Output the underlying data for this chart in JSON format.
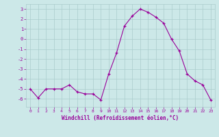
{
  "x": [
    0,
    1,
    2,
    3,
    4,
    5,
    6,
    7,
    8,
    9,
    10,
    11,
    12,
    13,
    14,
    15,
    16,
    17,
    18,
    19,
    20,
    21,
    22,
    23
  ],
  "y": [
    -5.0,
    -5.9,
    -5.0,
    -5.0,
    -5.0,
    -4.6,
    -5.3,
    -5.5,
    -5.5,
    -6.1,
    -3.5,
    -1.4,
    1.3,
    2.3,
    3.0,
    2.7,
    2.2,
    1.6,
    0.0,
    -1.2,
    -3.5,
    -4.2,
    -4.6,
    -6.1
  ],
  "line_color": "#990099",
  "marker_color": "#990099",
  "bg_color": "#cce8e8",
  "grid_color": "#aacccc",
  "xlabel": "Windchill (Refroidissement éolien,°C)",
  "xlabel_color": "#990099",
  "xtick_color": "#990099",
  "ytick_color": "#990099",
  "yticks": [
    -6,
    -5,
    -4,
    -3,
    -2,
    -1,
    0,
    1,
    2,
    3
  ],
  "xticks": [
    0,
    1,
    2,
    3,
    4,
    5,
    6,
    7,
    8,
    9,
    10,
    11,
    12,
    13,
    14,
    15,
    16,
    17,
    18,
    19,
    20,
    21,
    22,
    23
  ],
  "xlim": [
    -0.5,
    23.5
  ],
  "ylim": [
    -6.8,
    3.5
  ]
}
